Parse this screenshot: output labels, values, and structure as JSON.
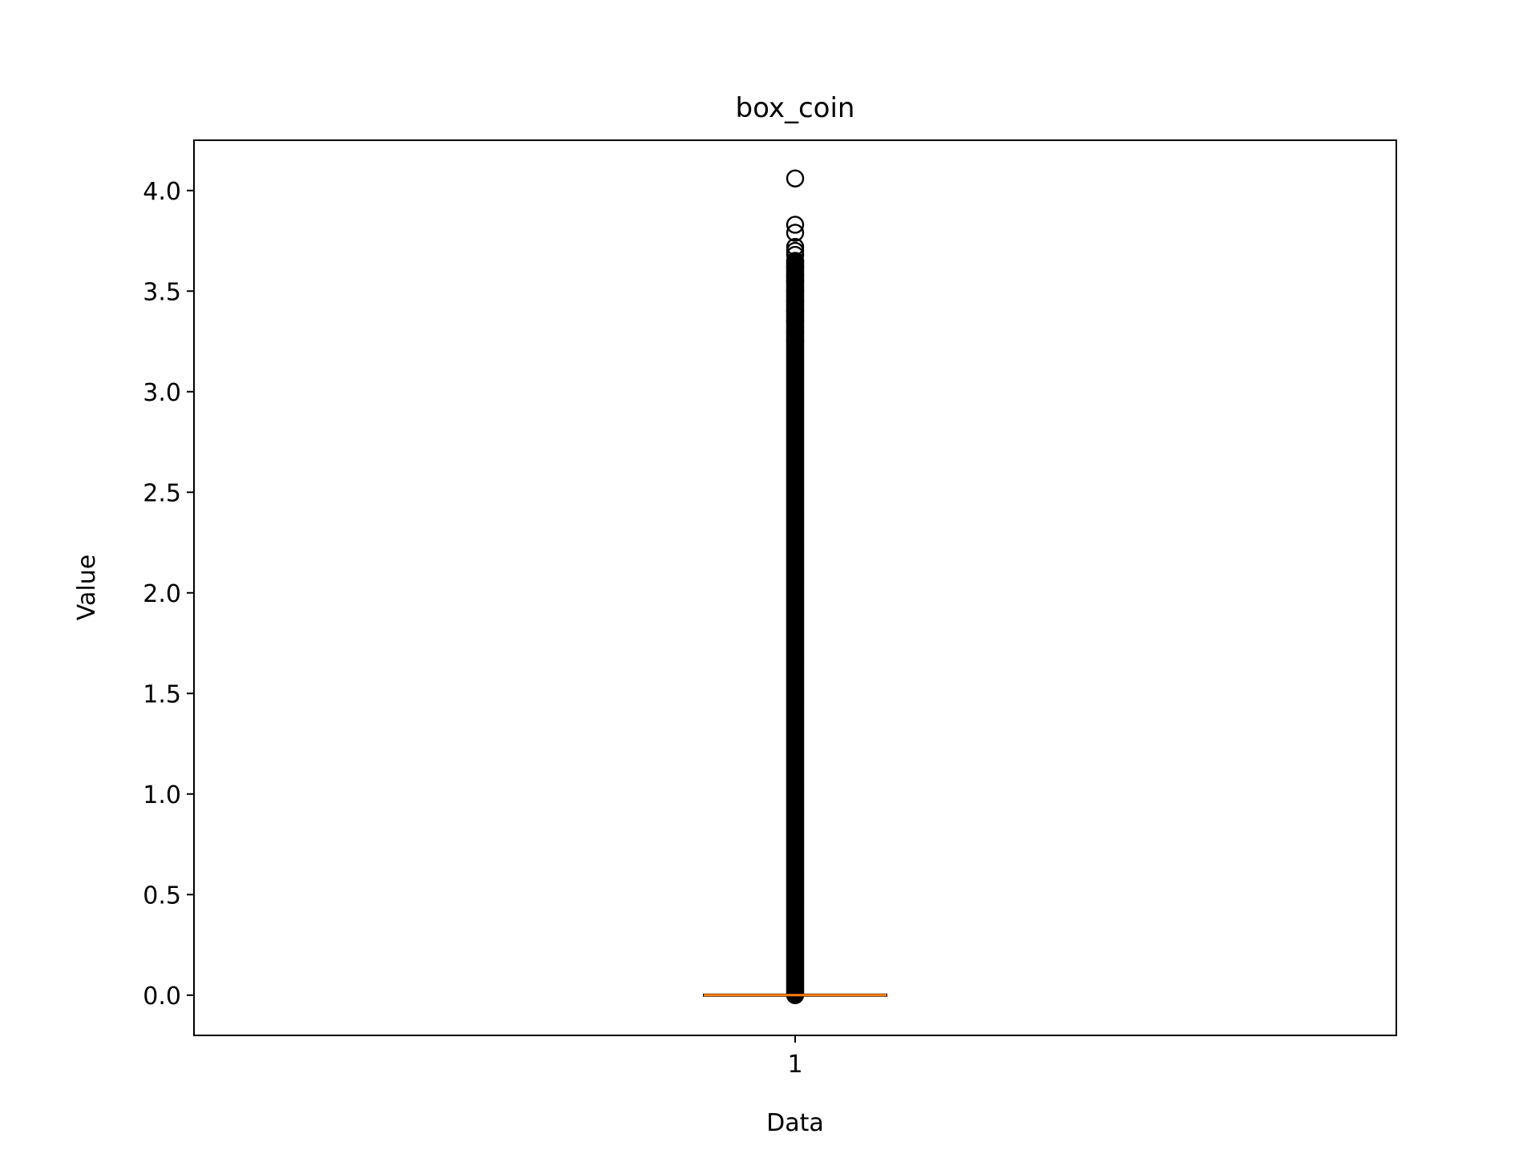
{
  "chart_data": {
    "type": "box",
    "title": "box_coin",
    "xlabel": "Data",
    "ylabel": "Value",
    "categories": [
      "1"
    ],
    "ylim": [
      -0.2,
      4.25
    ],
    "yticks": [
      0.0,
      0.5,
      1.0,
      1.5,
      2.0,
      2.5,
      3.0,
      3.5,
      4.0
    ],
    "ytick_labels": [
      "0.0",
      "0.5",
      "1.0",
      "1.5",
      "2.0",
      "2.5",
      "3.0",
      "3.5",
      "4.0"
    ],
    "grid": false,
    "series": [
      {
        "q1": 0.0,
        "median": 0.0,
        "q3": 0.0,
        "whisker_low": 0.0,
        "whisker_high": 0.0,
        "outliers_dense_range": [
          0.0,
          3.65
        ],
        "outliers_sparse": [
          3.25,
          3.3,
          3.35,
          3.4,
          3.45,
          3.5,
          3.55,
          3.58,
          3.62,
          3.65,
          3.68,
          3.7,
          3.72,
          3.79,
          3.83,
          4.06
        ]
      }
    ],
    "colors": {
      "median": "#ff7f0e",
      "box": "#000000",
      "outlier": "#000000"
    }
  }
}
